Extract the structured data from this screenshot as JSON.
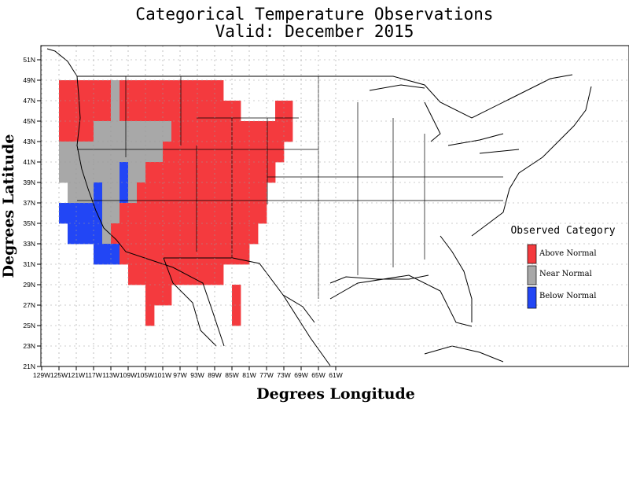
{
  "title_line1": "Categorical Temperature Observations",
  "title_line2": "Valid: December 2015",
  "x_axis_title": "Degrees Longitude",
  "y_axis_title": "Degrees Latitude",
  "lon_ticks": [
    "129W",
    "125W",
    "121W",
    "117W",
    "113W",
    "109W",
    "105W",
    "101W",
    "97W",
    "93W",
    "89W",
    "85W",
    "81W",
    "77W",
    "73W",
    "69W",
    "65W",
    "61W"
  ],
  "lat_ticks": [
    "21N",
    "23N",
    "25N",
    "27N",
    "29N",
    "31N",
    "33N",
    "35N",
    "37N",
    "39N",
    "41N",
    "43N",
    "45N",
    "47N",
    "49N",
    "51N"
  ],
  "legend": {
    "title": "Observed Category",
    "items": [
      {
        "label": "Above Normal",
        "color": "#f43a3e"
      },
      {
        "label": "Near Normal",
        "color": "#a8a8a8"
      },
      {
        "label": "Below Normal",
        "color": "#2246f5"
      }
    ]
  },
  "colors": {
    "A": "#f43a3e",
    "N": "#a8a8a8",
    "B": "#2246f5"
  },
  "grid": {
    "lon_start": -125,
    "lat_top": 49,
    "cell_deg": 2,
    "rows": [
      "AAAAAANAAAAAAAAAAAA.........",
      "AAAAAANAAAAAAAAAAAAAA....AA.",
      "AAAANNNNNNNNNAAAAAAAAAAAAAA.",
      "NNNNNNNNNNNNAAAAAAAAAAAAAA..",
      "NNNNNNNBNNAAAAAAAAAAAAAAA...",
      ".NNNBNNBNAAAAAAAAAAAAAAA....",
      "BBBBBNNAAAAAAAAAAAAAAAAA....",
      ".BBBBNAAAAAAAAAAAAAAAAA.....",
      "....BBBAAAAAAAAAAAAAAA......",
      "........AAAAAAAAAAA.........",
      "..........AAA.......A.......",
      "..........A.........A......."
    ]
  }
}
